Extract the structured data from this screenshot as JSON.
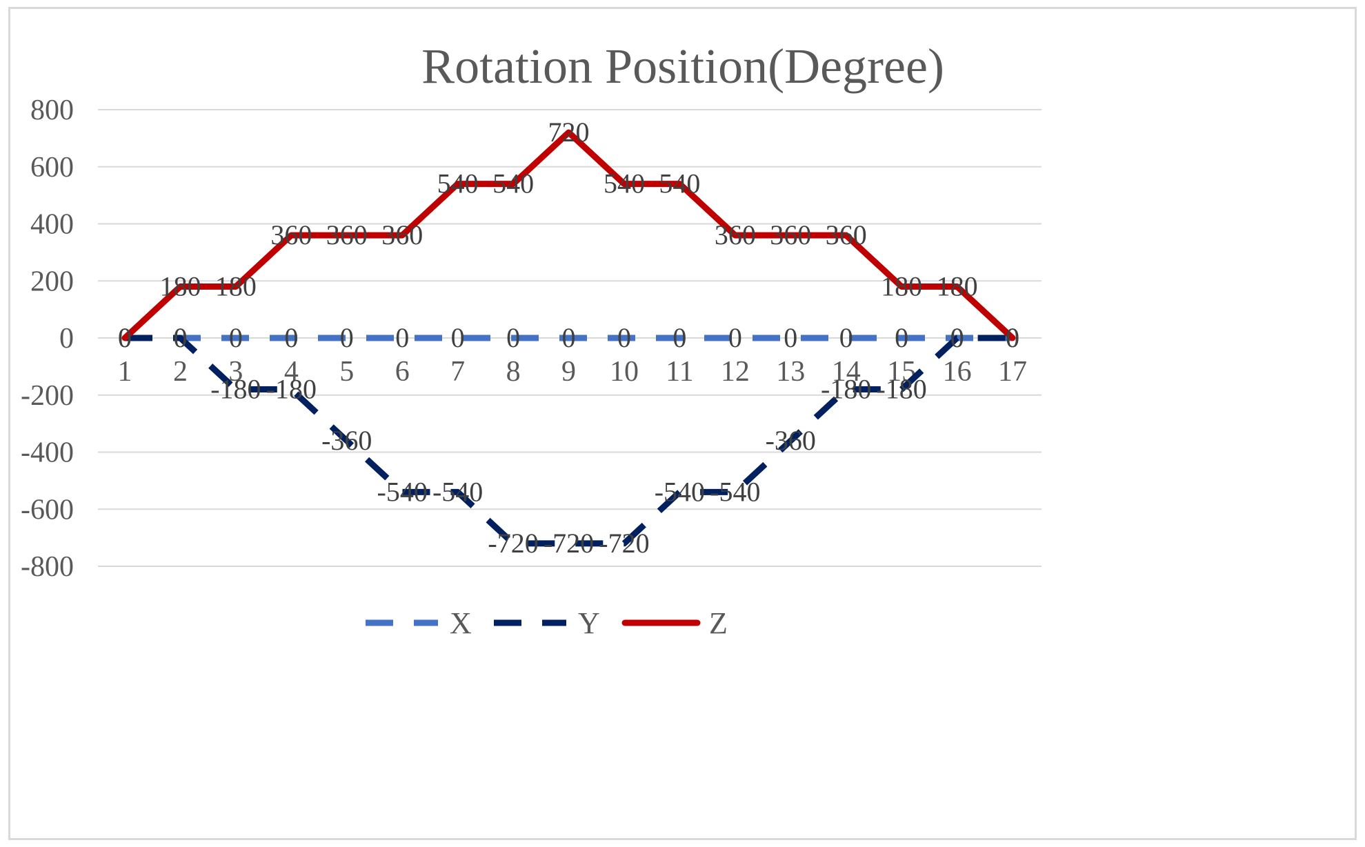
{
  "chart_data": {
    "type": "line",
    "title": "Rotation Position(Degree)",
    "xlabel": "",
    "ylabel": "",
    "categories": [
      "1",
      "2",
      "3",
      "4",
      "5",
      "6",
      "7",
      "8",
      "9",
      "10",
      "11",
      "12",
      "13",
      "14",
      "15",
      "16",
      "17"
    ],
    "ylim": [
      -800,
      800
    ],
    "yticks": [
      "800",
      "600",
      "400",
      "200",
      "0",
      "-200",
      "-400",
      "-600",
      "-800"
    ],
    "ytick_values": [
      800,
      600,
      400,
      200,
      0,
      -200,
      -400,
      -600,
      -800
    ],
    "grid": true,
    "legend_position": "bottom",
    "data_labels": true,
    "series": [
      {
        "name": "X",
        "color": "#4472c4",
        "style": "dashed",
        "values": [
          0,
          0,
          0,
          0,
          0,
          0,
          0,
          0,
          0,
          0,
          0,
          0,
          0,
          0,
          0,
          0,
          0
        ]
      },
      {
        "name": "Y",
        "color": "#002060",
        "style": "dashed",
        "values": [
          0,
          0,
          -180,
          -180,
          -360,
          -540,
          -540,
          -720,
          -720,
          -720,
          -540,
          -540,
          -360,
          -180,
          -180,
          0,
          0
        ]
      },
      {
        "name": "Z",
        "color": "#c00000",
        "style": "solid",
        "values": [
          0,
          180,
          180,
          360,
          360,
          360,
          540,
          540,
          720,
          540,
          540,
          360,
          360,
          360,
          180,
          180,
          0
        ]
      }
    ]
  }
}
